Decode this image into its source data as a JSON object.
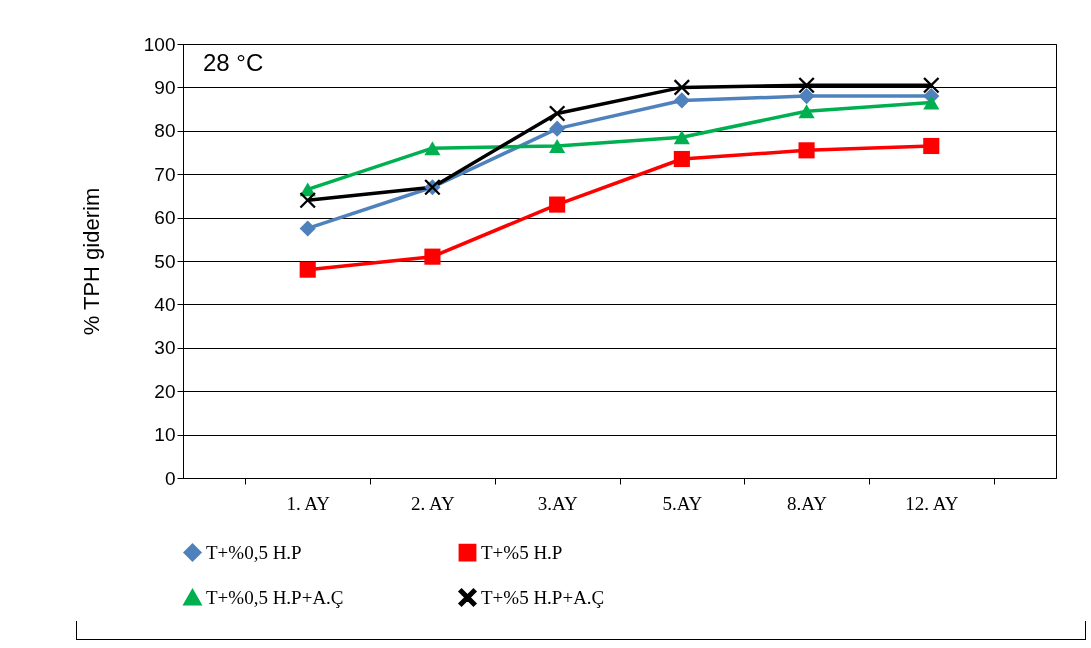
{
  "chart_data": {
    "type": "line",
    "ylabel": "% TPH giderim",
    "annotations": [
      "28 °C"
    ],
    "categories": [
      "1. AY",
      "2. AY",
      "3.AY",
      "5.AY",
      "8.AY",
      "12. AY"
    ],
    "ylim": [
      0,
      100
    ],
    "yticks": [
      0,
      10,
      20,
      30,
      40,
      50,
      60,
      70,
      80,
      90,
      100
    ],
    "grid": "y",
    "legend": "bottom",
    "series": [
      {
        "name": "T+%0,5 H.P",
        "color": "#4f81bd",
        "marker": "diamond",
        "values": [
          57.5,
          67,
          80.5,
          87,
          88,
          88
        ]
      },
      {
        "name": "T+%5 H.P",
        "color": "#ff0000",
        "marker": "square",
        "values": [
          48,
          51,
          63,
          73.5,
          75.5,
          76.5
        ]
      },
      {
        "name": "T+%0,5 H.P+A.Ç",
        "color": "#00b050",
        "marker": "triangle",
        "values": [
          66.5,
          76,
          76.5,
          78.5,
          84.5,
          86.5
        ]
      },
      {
        "name": "T+%5 H.P+A.Ç",
        "color": "#000000",
        "marker": "cross",
        "values": [
          64,
          67,
          84,
          90,
          90.5,
          90.5
        ]
      }
    ]
  }
}
